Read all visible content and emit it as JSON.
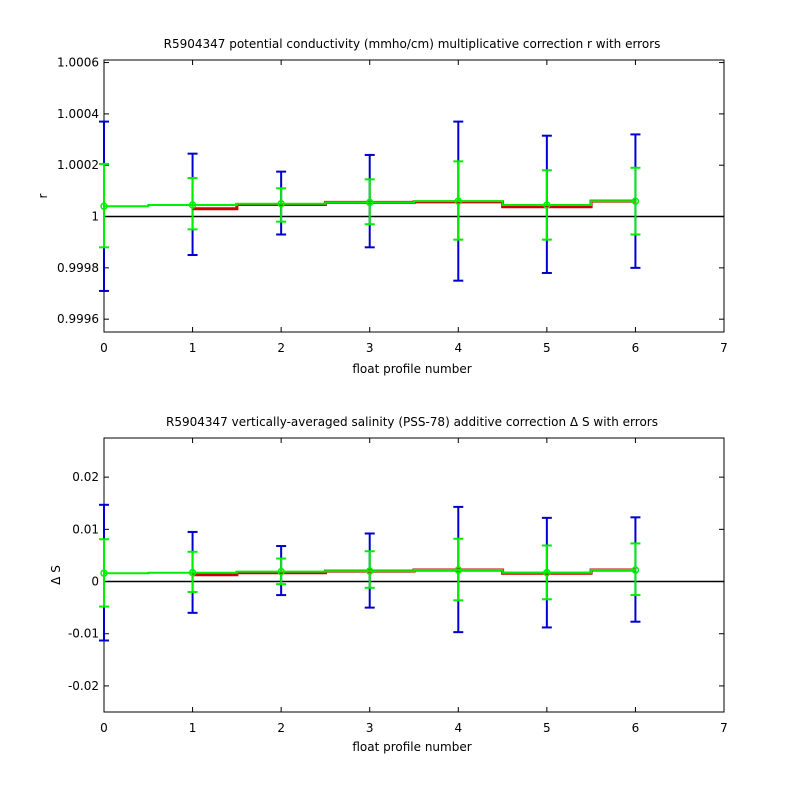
{
  "chart_data": [
    {
      "type": "line",
      "title": "R5904347 potential conductivity (mmho/cm) multiplicative correction r with errors",
      "xlabel": "float profile number",
      "ylabel": "r",
      "xlim": [
        0,
        7
      ],
      "ylim": [
        0.99955,
        1.00061
      ],
      "x_ticks": [
        0,
        1,
        2,
        3,
        4,
        5,
        6,
        7
      ],
      "x_tick_labels": [
        "0",
        "1",
        "2",
        "3",
        "4",
        "5",
        "6",
        "7"
      ],
      "y_ticks": [
        0.9996,
        0.9998,
        1.0,
        1.0002,
        1.0004,
        1.0006
      ],
      "y_tick_labels": [
        "0.9996",
        "0.9998",
        "1",
        "1.0002",
        "1.0004",
        "1.0006"
      ],
      "grid": false,
      "reference_line": 1.0,
      "colors": {
        "fit": "#00ee00",
        "correction": "#cc0000",
        "error_outer": "#0000cc",
        "error_inner": "#00ee00",
        "reference": "#000000"
      },
      "x": [
        0,
        1,
        2,
        3,
        4,
        5,
        6
      ],
      "series": [
        {
          "values": [
            1.00004,
            1.000045,
            1.00005,
            1.000055,
            1.00006,
            1.000045,
            1.00006
          ]
        },
        {
          "values": [
            null,
            1.00003,
            1.000047,
            1.000055,
            1.000057,
            1.000038,
            1.00006
          ]
        }
      ],
      "error_bars_outer": [
        [
          0.99971,
          1.00037
        ],
        [
          0.99985,
          1.000245
        ],
        [
          0.99993,
          1.000175
        ],
        [
          0.99988,
          1.00024
        ],
        [
          0.99975,
          1.00037
        ],
        [
          0.99978,
          1.000315
        ],
        [
          0.9998,
          1.00032
        ]
      ],
      "error_bars_inner": [
        [
          0.99988,
          1.000205
        ],
        [
          0.99995,
          1.00015
        ],
        [
          0.99998,
          1.00011
        ],
        [
          0.99997,
          1.000145
        ],
        [
          0.99991,
          1.000215
        ],
        [
          0.99991,
          1.00018
        ],
        [
          0.99993,
          1.00019
        ]
      ]
    },
    {
      "type": "line",
      "title": "R5904347 vertically-averaged salinity (PSS-78) additive correction Δ S with errors",
      "xlabel": "float profile number",
      "ylabel": "Δ S",
      "xlim": [
        0,
        7
      ],
      "ylim": [
        -0.025,
        0.0275
      ],
      "x_ticks": [
        0,
        1,
        2,
        3,
        4,
        5,
        6,
        7
      ],
      "x_tick_labels": [
        "0",
        "1",
        "2",
        "3",
        "4",
        "5",
        "6",
        "7"
      ],
      "y_ticks": [
        -0.02,
        -0.01,
        0,
        0.01,
        0.02
      ],
      "y_tick_labels": [
        "-0.02",
        "-0.01",
        "0",
        "0.01",
        "0.02"
      ],
      "grid": false,
      "reference_line": 0,
      "colors": {
        "fit": "#00ee00",
        "correction": "#cc0000",
        "error_outer": "#0000cc",
        "error_inner": "#00ee00",
        "reference": "#000000"
      },
      "x": [
        0,
        1,
        2,
        3,
        4,
        5,
        6
      ],
      "series": [
        {
          "values": [
            0.0016,
            0.0017,
            0.0019,
            0.002,
            0.0022,
            0.0017,
            0.0022
          ]
        },
        {
          "values": [
            null,
            0.0013,
            0.0017,
            0.002,
            0.0022,
            0.0016,
            0.0022
          ]
        }
      ],
      "error_bars_outer": [
        [
          -0.0113,
          0.0147
        ],
        [
          -0.006,
          0.0095
        ],
        [
          -0.0026,
          0.0068
        ],
        [
          -0.005,
          0.0092
        ],
        [
          -0.0097,
          0.0143
        ],
        [
          -0.0088,
          0.0122
        ],
        [
          -0.0077,
          0.0123
        ]
      ],
      "error_bars_inner": [
        [
          -0.0048,
          0.0081
        ],
        [
          -0.002,
          0.0057
        ],
        [
          -0.0005,
          0.0044
        ],
        [
          -0.0012,
          0.0058
        ],
        [
          -0.0036,
          0.0082
        ],
        [
          -0.0034,
          0.0069
        ],
        [
          -0.0026,
          0.0073
        ]
      ]
    }
  ]
}
